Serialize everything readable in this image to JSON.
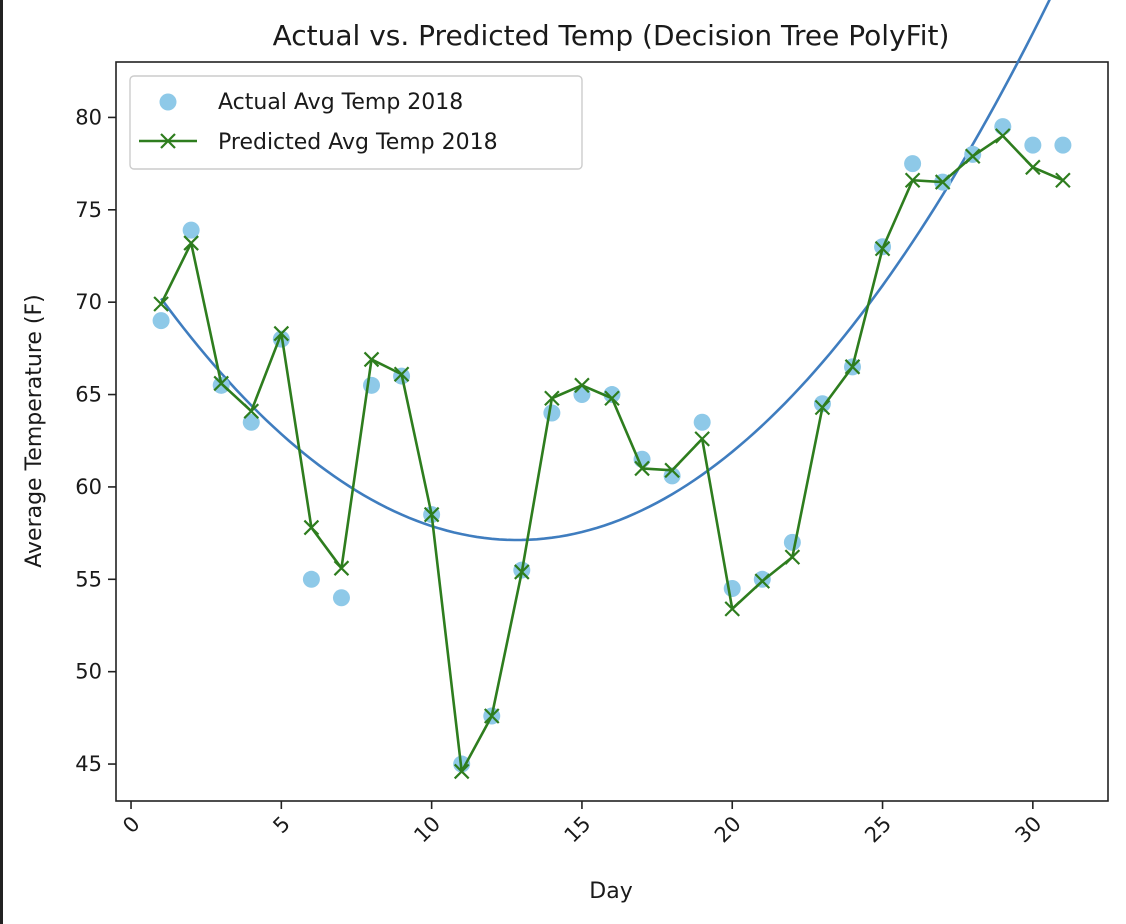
{
  "chart_data": {
    "type": "line",
    "title": "Actual vs. Predicted Temp (Decision Tree PolyFit)",
    "xlabel": "Day",
    "ylabel": "Average Temperature (F)",
    "xlim": [
      -0.5,
      32.5
    ],
    "ylim": [
      43,
      83
    ],
    "xticks": [
      0,
      5,
      10,
      15,
      20,
      25,
      30
    ],
    "yticks": [
      45,
      50,
      55,
      60,
      65,
      70,
      75,
      80
    ],
    "x_tick_rotation": 45,
    "grid": false,
    "legend_position": "upper-left",
    "series": [
      {
        "name": "Actual Avg Temp 2018",
        "kind": "scatter",
        "color": "#8ec9e8",
        "x": [
          1,
          2,
          3,
          4,
          5,
          6,
          7,
          8,
          9,
          10,
          11,
          12,
          13,
          14,
          15,
          16,
          17,
          18,
          19,
          20,
          21,
          22,
          23,
          24,
          25,
          26,
          27,
          28,
          29,
          30,
          31
        ],
        "y": [
          69,
          73.9,
          65.5,
          63.5,
          68,
          55,
          54,
          65.5,
          66,
          58.5,
          45,
          47.6,
          55.5,
          64,
          65,
          65,
          61.5,
          60.6,
          63.5,
          54.5,
          55,
          57,
          64.5,
          66.5,
          73,
          77.5,
          76.5,
          78,
          79.5,
          78.5,
          78.5
        ]
      },
      {
        "name": "Predicted Avg Temp 2018",
        "kind": "line",
        "marker": "x",
        "color": "#2e7d1e",
        "x": [
          1,
          2,
          3,
          4,
          5,
          6,
          7,
          8,
          9,
          10,
          11,
          12,
          13,
          14,
          15,
          16,
          17,
          18,
          19,
          20,
          21,
          22,
          23,
          24,
          25,
          26,
          27,
          28,
          29,
          30,
          31
        ],
        "y": [
          69.9,
          73.2,
          65.6,
          64.1,
          68.3,
          57.8,
          55.6,
          66.9,
          66.1,
          58.5,
          44.6,
          47.6,
          55.4,
          64.8,
          65.5,
          64.8,
          61,
          60.9,
          62.6,
          53.4,
          54.9,
          56.2,
          64.3,
          66.5,
          72.9,
          76.6,
          76.5,
          77.9,
          79,
          77.3,
          76.6
        ]
      },
      {
        "name": "",
        "kind": "polyfit",
        "color": "#3f7dbf",
        "degree": 2,
        "coefficients": [
          0.0932,
          -2.394,
          72.5
        ]
      }
    ]
  }
}
